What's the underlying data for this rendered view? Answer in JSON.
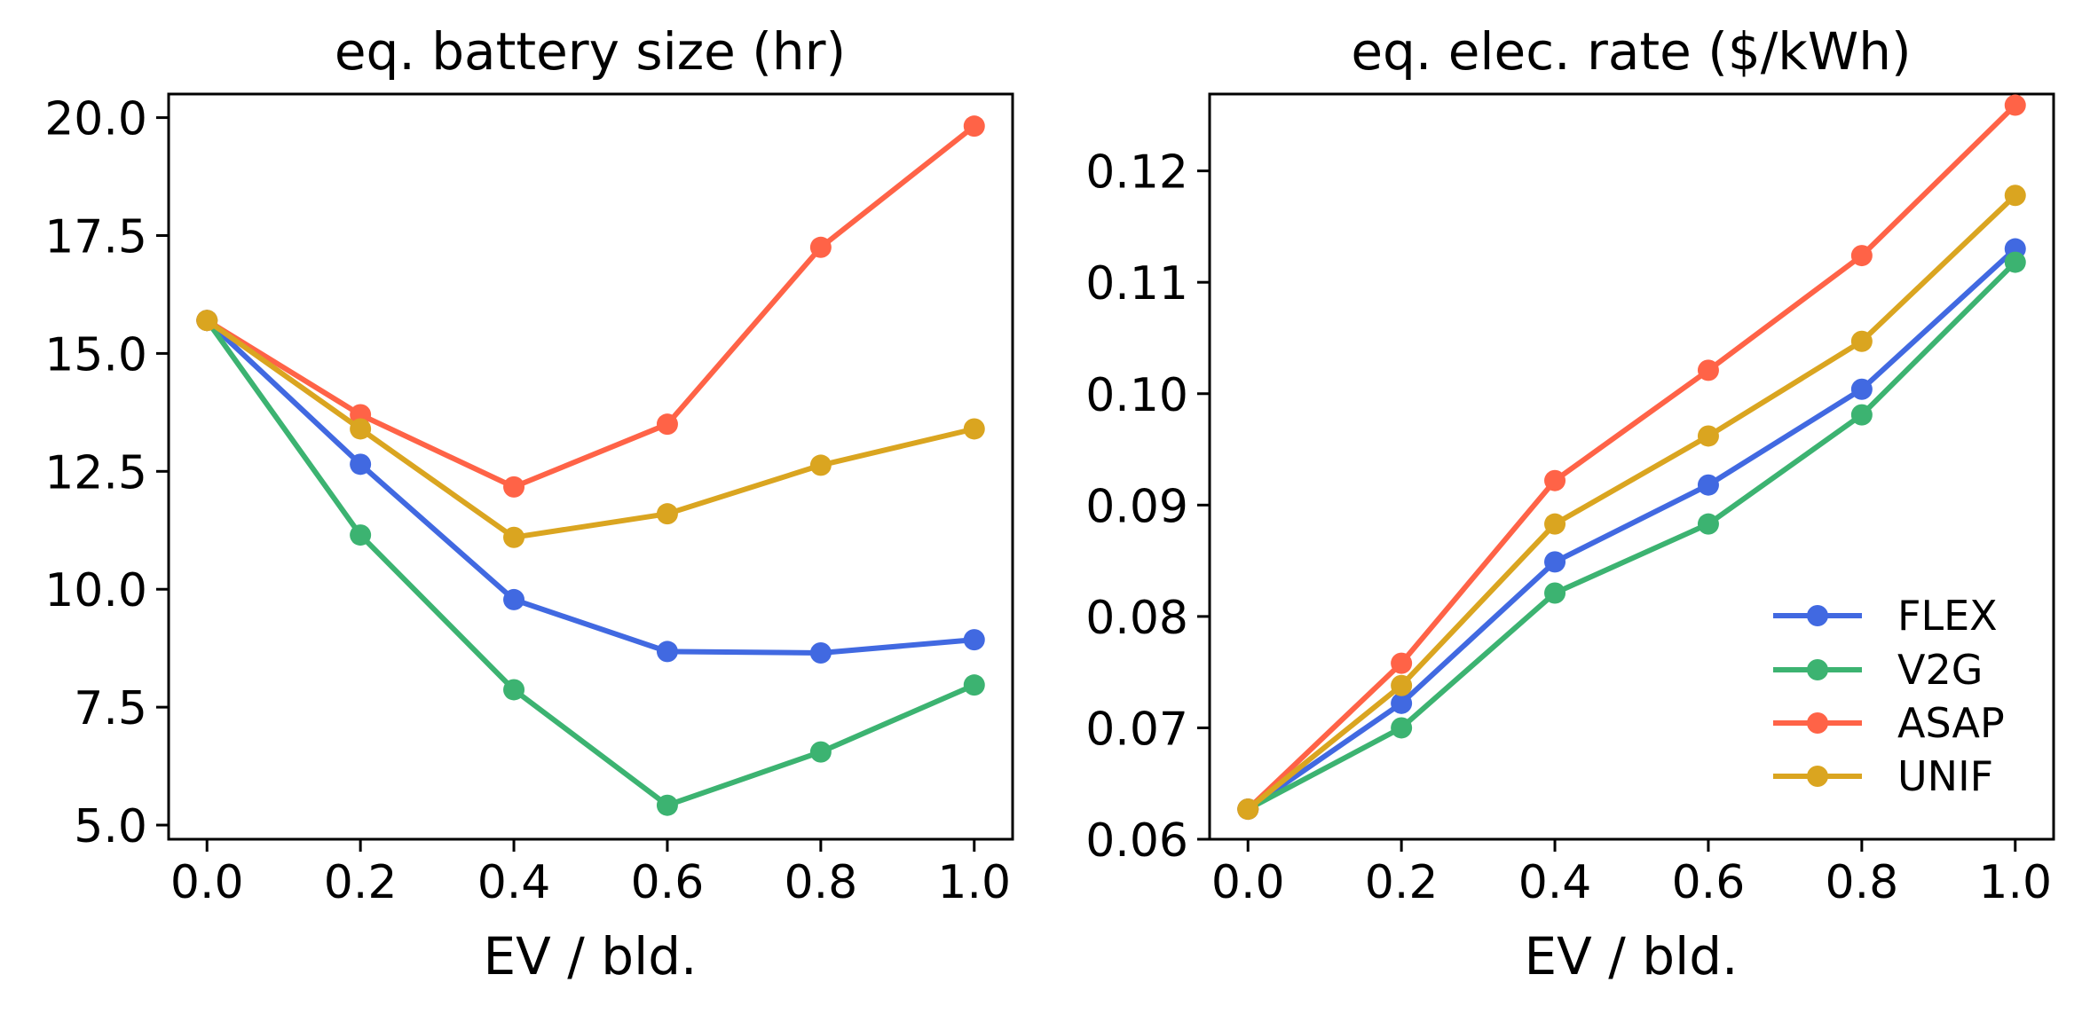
{
  "chart_data": [
    {
      "type": "line",
      "title": "eq. battery size (hr)",
      "xlabel": "EV / bld.",
      "ylabel": "",
      "x": [
        0.0,
        0.2,
        0.4,
        0.6,
        0.8,
        1.0
      ],
      "xlim": [
        -0.05,
        1.05
      ],
      "ylim": [
        4.7,
        20.5
      ],
      "xticks": [
        0.0,
        0.2,
        0.4,
        0.6,
        0.8,
        1.0
      ],
      "xtick_labels": [
        "0.0",
        "0.2",
        "0.4",
        "0.6",
        "0.8",
        "1.0"
      ],
      "yticks": [
        5.0,
        7.5,
        10.0,
        12.5,
        15.0,
        17.5,
        20.0
      ],
      "ytick_labels": [
        "5.0",
        "7.5",
        "10.0",
        "12.5",
        "15.0",
        "17.5",
        "20.0"
      ],
      "grid": false,
      "series": [
        {
          "name": "FLEX",
          "color": "#4169E1",
          "values": [
            15.7,
            12.65,
            9.78,
            8.68,
            8.65,
            8.93
          ]
        },
        {
          "name": "V2G",
          "color": "#3CB371",
          "values": [
            15.7,
            11.15,
            7.87,
            5.42,
            6.55,
            7.97
          ]
        },
        {
          "name": "ASAP",
          "color": "#FF6347",
          "values": [
            15.7,
            13.7,
            12.17,
            13.5,
            17.25,
            19.82
          ]
        },
        {
          "name": "UNIF",
          "color": "#DAA520",
          "values": [
            15.7,
            13.4,
            11.1,
            11.6,
            12.63,
            13.4
          ]
        }
      ]
    },
    {
      "type": "line",
      "title": "eq. elec. rate ($/kWh)",
      "xlabel": "EV / bld.",
      "ylabel": "",
      "x": [
        0.0,
        0.2,
        0.4,
        0.6,
        0.8,
        1.0
      ],
      "xlim": [
        -0.05,
        1.05
      ],
      "ylim": [
        0.06,
        0.1269
      ],
      "xticks": [
        0.0,
        0.2,
        0.4,
        0.6,
        0.8,
        1.0
      ],
      "xtick_labels": [
        "0.0",
        "0.2",
        "0.4",
        "0.6",
        "0.8",
        "1.0"
      ],
      "yticks": [
        0.06,
        0.07,
        0.08,
        0.09,
        0.1,
        0.11,
        0.12
      ],
      "ytick_labels": [
        "0.06",
        "0.07",
        "0.08",
        "0.09",
        "0.10",
        "0.11",
        "0.12"
      ],
      "grid": false,
      "legend": {
        "placement": "lower-right",
        "entries": [
          "FLEX",
          "V2G",
          "ASAP",
          "UNIF"
        ]
      },
      "series": [
        {
          "name": "FLEX",
          "color": "#4169E1",
          "values": [
            0.0627,
            0.0722,
            0.0849,
            0.0918,
            0.1004,
            0.113
          ]
        },
        {
          "name": "V2G",
          "color": "#3CB371",
          "values": [
            0.0627,
            0.07,
            0.0821,
            0.0883,
            0.0981,
            0.1118
          ]
        },
        {
          "name": "ASAP",
          "color": "#FF6347",
          "values": [
            0.0627,
            0.0758,
            0.0922,
            0.1021,
            0.1124,
            0.1259
          ]
        },
        {
          "name": "UNIF",
          "color": "#DAA520",
          "values": [
            0.0627,
            0.0738,
            0.0883,
            0.0962,
            0.1047,
            0.1178
          ]
        }
      ]
    }
  ]
}
